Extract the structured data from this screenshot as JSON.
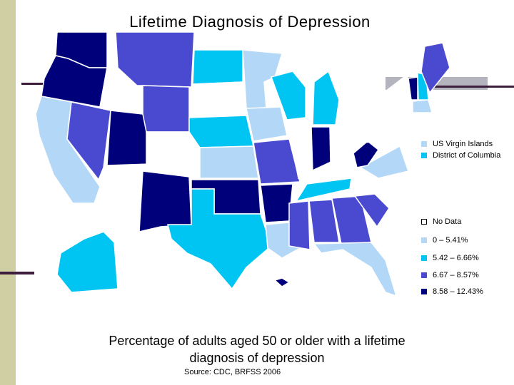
{
  "title": "Lifetime Diagnosis of Depression",
  "caption_line1": "Percentage of adults aged 50 or older with a lifetime",
  "caption_line2": "diagnosis of depression",
  "source": "Source:  CDC, BRFSS 2006",
  "legend": {
    "vi": {
      "label": "US Virgin Islands",
      "color": "#b2d7f7"
    },
    "dc": {
      "label": "District of Columbia",
      "color": "#00c5f2"
    },
    "nodata": {
      "label": "No Data",
      "color": "#ffffff"
    },
    "c1": {
      "label": "0 – 5.41%",
      "color": "#b2d7f7"
    },
    "c2": {
      "label": "5.42 – 6.66%",
      "color": "#00c5f2"
    },
    "c3": {
      "label": "6.67 – 8.57%",
      "color": "#4a4ad0"
    },
    "c4": {
      "label": "8.58 – 12.43%",
      "color": "#00007a"
    }
  },
  "colors": {
    "white": "#ffffff",
    "light": "#b2d7f7",
    "cyan": "#00c5f2",
    "medium": "#4a4ad0",
    "dark": "#00007a",
    "frame": "#cfcfa3"
  },
  "state_classes": {
    "WA": "dark",
    "OR": "dark",
    "CA": "light",
    "NV": "medium",
    "ID": "white",
    "MT": "medium",
    "WY": "medium",
    "UT": "dark",
    "CO": "white",
    "AZ": "white",
    "NM": "dark",
    "ND": "cyan",
    "SD": "white",
    "NE": "cyan",
    "KS": "light",
    "OK": "dark",
    "TX": "cyan",
    "MN": "light",
    "IA": "light",
    "MO": "medium",
    "AR": "dark",
    "LA": "light",
    "WI": "cyan",
    "IL": "white",
    "MI": "cyan",
    "IN": "dark",
    "OH": "white",
    "KY": "white",
    "TN": "cyan",
    "MS": "medium",
    "AL": "medium",
    "GA": "medium",
    "FL": "light",
    "SC": "medium",
    "NC": "white",
    "VA": "light",
    "WV": "dark",
    "PA": "white",
    "NY": "white",
    "ME": "medium",
    "VT": "dark",
    "NH": "cyan",
    "MA": "light",
    "AK": "cyan",
    "HI": "dark"
  }
}
